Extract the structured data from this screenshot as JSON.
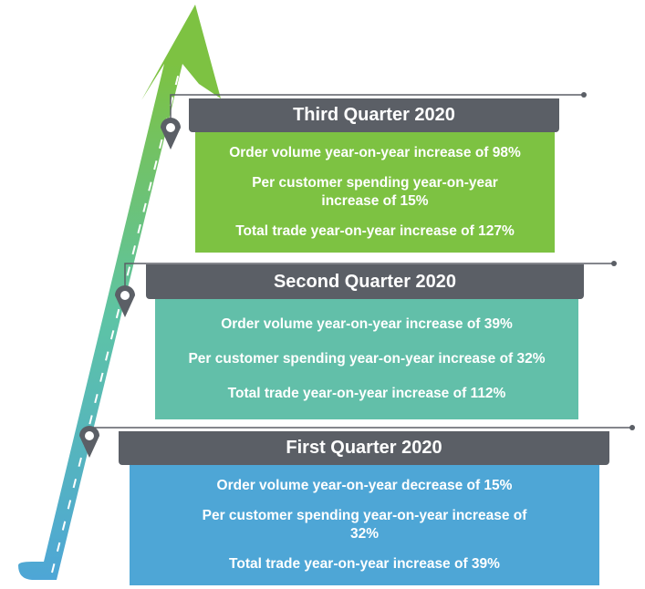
{
  "blocks": [
    {
      "title": "Third Quarter 2020",
      "lines": [
        "Order volume year-on-year increase of 98%",
        "Per customer spending year-on-year increase of 15%",
        "Total trade year-on-year increase of 127%"
      ]
    },
    {
      "title": "Second Quarter 2020",
      "lines": [
        "Order volume year-on-year increase of 39%",
        "Per customer spending year-on-year increase of 32%",
        "Total trade year-on-year increase of 112%"
      ]
    },
    {
      "title": "First Quarter 2020",
      "lines": [
        "Order volume year-on-year decrease of 15%",
        "Per customer spending year-on-year increase of 32%",
        "Total trade year-on-year increase of 39%"
      ]
    }
  ]
}
